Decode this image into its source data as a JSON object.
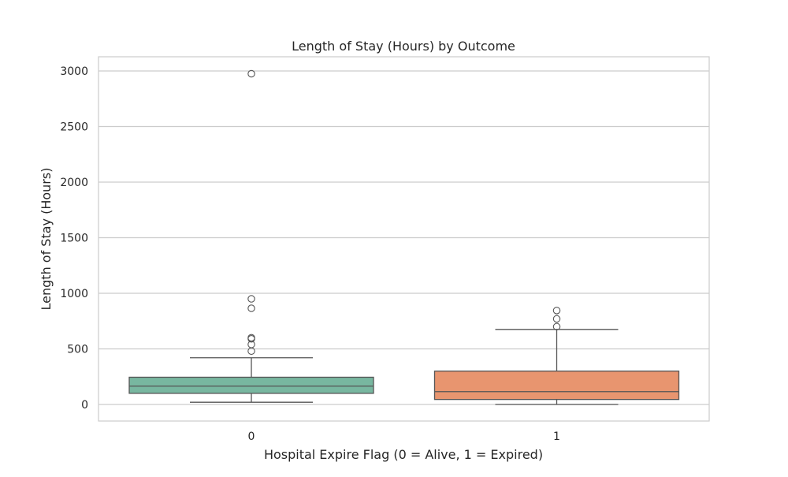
{
  "chart_data": {
    "type": "box",
    "title": "Length of Stay (Hours) by Outcome",
    "xlabel": "Hospital Expire Flag (0 = Alive, 1 = Expired)",
    "ylabel": "Length of Stay (Hours)",
    "ylim": [
      -150,
      3130
    ],
    "yticks": [
      0,
      500,
      1000,
      1500,
      2000,
      2500,
      3000
    ],
    "grid": true,
    "legend": null,
    "categories": [
      "0",
      "1"
    ],
    "boxes": [
      {
        "category": "0",
        "color": "#78b7a0",
        "whisker_low": 20,
        "q1": 100,
        "median": 165,
        "q3": 245,
        "whisker_high": 420,
        "outliers": [
          480,
          540,
          590,
          600,
          865,
          950,
          2975
        ]
      },
      {
        "category": "1",
        "color": "#e8956f",
        "whisker_low": 0,
        "q1": 45,
        "median": 115,
        "q3": 300,
        "whisker_high": 675,
        "outliers": [
          700,
          770,
          845
        ]
      }
    ]
  }
}
